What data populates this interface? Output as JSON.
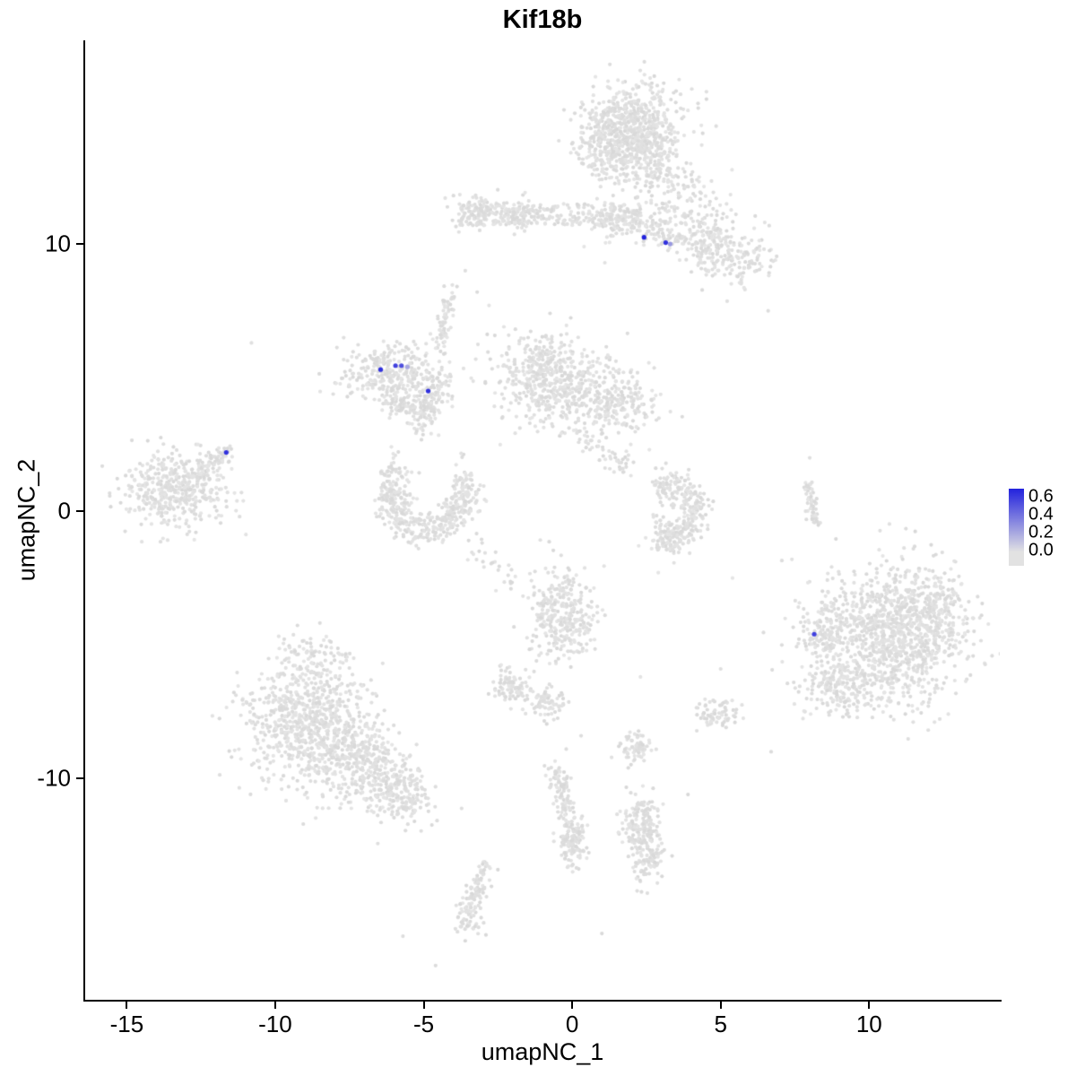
{
  "title": "Kif18b",
  "axes": {
    "x": {
      "label": "umapNC_1",
      "ticks": [
        -15,
        -10,
        -5,
        0,
        5,
        10
      ],
      "range": [
        -16.4,
        14.4
      ]
    },
    "y": {
      "label": "umapNC_2",
      "ticks": [
        10,
        0,
        -10
      ],
      "range": [
        -18.28,
        17.62
      ]
    }
  },
  "legend": {
    "tick_labels": [
      "0.6",
      "0.4",
      "0.2",
      "0.0"
    ],
    "vmax": 0.65,
    "vmin": 0.0,
    "color_high": "#2222DD",
    "color_low": "#E2E2E2"
  },
  "colors": {
    "background": "#FFFFFF",
    "axis": "#000000",
    "point_gray": "#DEDEDE"
  },
  "chart_data": {
    "type": "scatter",
    "title": "Kif18b",
    "xlabel": "umapNC_1",
    "ylabel": "umapNC_2",
    "xlim": [
      -16.4,
      14.4
    ],
    "ylim": [
      -18.28,
      17.62
    ],
    "grid": false,
    "legend_position": "right",
    "description": "UMAP feature plot; gray points are cells with zero Kif18b expression, blue points indicate expression level per legend gradient 0.0-0.6",
    "clusters": [
      {
        "type": "gauss",
        "x": 2.0,
        "y": 14.4,
        "sx": 0.85,
        "sy": 0.85,
        "n": 650
      },
      {
        "type": "gauss",
        "x": 1.3,
        "y": 13.5,
        "sx": 0.55,
        "sy": 0.6,
        "n": 180
      },
      {
        "type": "gauss",
        "x": 2.9,
        "y": 13.0,
        "sx": 0.5,
        "sy": 0.6,
        "n": 120
      },
      {
        "type": "gauss",
        "x": 3.5,
        "y": 11.6,
        "sx": 0.8,
        "sy": 0.7,
        "n": 120
      },
      {
        "type": "gauss",
        "x": 4.8,
        "y": 10.0,
        "sx": 0.65,
        "sy": 0.6,
        "n": 200
      },
      {
        "type": "gauss",
        "x": 5.8,
        "y": 9.3,
        "sx": 0.4,
        "sy": 0.4,
        "n": 70
      },
      {
        "type": "uniform",
        "x": -0.7,
        "y": 11.1,
        "w": 6.2,
        "h": 0.8,
        "n": 240
      },
      {
        "type": "gauss",
        "x": -3.2,
        "y": 11.15,
        "sx": 0.4,
        "sy": 0.3,
        "n": 90
      },
      {
        "type": "gauss",
        "x": -1.9,
        "y": 11.1,
        "sx": 0.45,
        "sy": 0.3,
        "n": 80
      },
      {
        "type": "gauss",
        "x": 1.3,
        "y": 10.9,
        "sx": 0.5,
        "sy": 0.35,
        "n": 90
      },
      {
        "type": "trail",
        "x1": 2.2,
        "y1": 10.6,
        "x2": 3.6,
        "y2": 10.2,
        "jitter": 0.25,
        "n": 60
      },
      {
        "type": "gauss",
        "x": -6.1,
        "y": 5.2,
        "sx": 0.85,
        "sy": 0.5,
        "n": 300
      },
      {
        "type": "arc",
        "x": -5.4,
        "y": 4.7,
        "r": 0.95,
        "a0": -160,
        "a1": 20,
        "jitter": 0.22,
        "n": 130
      },
      {
        "type": "gauss",
        "x": -4.95,
        "y": 3.7,
        "sx": 0.3,
        "sy": 0.45,
        "n": 70
      },
      {
        "type": "trail",
        "x1": -4.45,
        "y1": 6.1,
        "x2": -4.1,
        "y2": 8.4,
        "jitter": 0.13,
        "n": 70
      },
      {
        "type": "gauss",
        "x": -1.0,
        "y": 5.0,
        "sx": 0.8,
        "sy": 0.85,
        "n": 420
      },
      {
        "type": "gauss",
        "x": 0.7,
        "y": 4.3,
        "sx": 0.85,
        "sy": 0.7,
        "n": 260
      },
      {
        "type": "gauss",
        "x": 2.0,
        "y": 4.0,
        "sx": 0.5,
        "sy": 0.5,
        "n": 90
      },
      {
        "type": "trail",
        "x1": 0.3,
        "y1": 2.9,
        "x2": 1.9,
        "y2": 1.4,
        "jitter": 0.25,
        "n": 50
      },
      {
        "type": "arc",
        "x": -4.9,
        "y": 0.4,
        "r": 1.15,
        "a0": -200,
        "a1": 10,
        "jitter": 0.3,
        "n": 330
      },
      {
        "type": "gauss",
        "x": -6.0,
        "y": 1.0,
        "sx": 0.3,
        "sy": 0.45,
        "n": 80
      },
      {
        "type": "gauss",
        "x": -3.6,
        "y": 0.9,
        "sx": 0.3,
        "sy": 0.4,
        "n": 70
      },
      {
        "type": "gauss",
        "x": -13.4,
        "y": 0.8,
        "sx": 0.85,
        "sy": 0.7,
        "n": 430
      },
      {
        "type": "trail",
        "x1": -12.5,
        "y1": 1.4,
        "x2": -11.6,
        "y2": 2.3,
        "jitter": 0.15,
        "n": 70
      },
      {
        "type": "arc",
        "x": 3.1,
        "y": 0.0,
        "r": 1.05,
        "a0": -100,
        "a1": 110,
        "jitter": 0.27,
        "n": 260
      },
      {
        "type": "gauss",
        "x": 3.4,
        "y": -0.9,
        "sx": 0.5,
        "sy": 0.4,
        "n": 90
      },
      {
        "type": "trail",
        "x1": 7.9,
        "y1": 1.0,
        "x2": 8.2,
        "y2": -0.5,
        "jitter": 0.1,
        "n": 55
      },
      {
        "type": "gauss",
        "x": 10.7,
        "y": -4.7,
        "sx": 1.25,
        "sy": 1.3,
        "n": 1150
      },
      {
        "type": "gauss",
        "x": 9.0,
        "y": -6.6,
        "sx": 0.6,
        "sy": 0.5,
        "n": 150
      },
      {
        "type": "gauss",
        "x": 8.5,
        "y": -4.4,
        "sx": 0.4,
        "sy": 0.6,
        "n": 110
      },
      {
        "type": "gauss",
        "x": 12.4,
        "y": -3.4,
        "sx": 0.5,
        "sy": 0.6,
        "n": 120
      },
      {
        "type": "gauss",
        "x": -0.3,
        "y": -3.9,
        "sx": 0.55,
        "sy": 0.85,
        "n": 320
      },
      {
        "type": "gauss",
        "x": -8.8,
        "y": -8.0,
        "sx": 1.1,
        "sy": 1.15,
        "n": 820
      },
      {
        "type": "gauss",
        "x": -6.7,
        "y": -9.7,
        "sx": 0.75,
        "sy": 0.75,
        "n": 300
      },
      {
        "type": "gauss",
        "x": -5.6,
        "y": -10.8,
        "sx": 0.5,
        "sy": 0.5,
        "n": 130
      },
      {
        "type": "gauss",
        "x": -8.6,
        "y": -5.6,
        "sx": 0.6,
        "sy": 0.45,
        "n": 90
      },
      {
        "type": "trail",
        "x1": -3.4,
        "y1": -1.3,
        "x2": -1.6,
        "y2": -3.0,
        "jitter": 0.22,
        "n": 30
      },
      {
        "type": "gauss",
        "x": -2.0,
        "y": -6.5,
        "sx": 0.35,
        "sy": 0.3,
        "n": 90
      },
      {
        "type": "gauss",
        "x": -0.8,
        "y": -7.2,
        "sx": 0.3,
        "sy": 0.3,
        "n": 70
      },
      {
        "type": "gauss",
        "x": 2.1,
        "y": -8.9,
        "sx": 0.3,
        "sy": 0.25,
        "n": 70
      },
      {
        "type": "gauss",
        "x": 4.9,
        "y": -7.6,
        "sx": 0.35,
        "sy": 0.25,
        "n": 70
      },
      {
        "type": "trail",
        "x1": -0.6,
        "y1": -9.6,
        "x2": 0.1,
        "y2": -12.6,
        "jitter": 0.17,
        "n": 140
      },
      {
        "type": "gauss",
        "x": 0.0,
        "y": -12.4,
        "sx": 0.28,
        "sy": 0.45,
        "n": 90
      },
      {
        "type": "gauss",
        "x": 2.3,
        "y": -11.7,
        "sx": 0.3,
        "sy": 0.55,
        "n": 140
      },
      {
        "type": "gauss",
        "x": 2.55,
        "y": -13.0,
        "sx": 0.28,
        "sy": 0.5,
        "n": 110
      },
      {
        "type": "trail",
        "x1": -2.9,
        "y1": -13.2,
        "x2": -3.5,
        "y2": -15.0,
        "jitter": 0.15,
        "n": 80
      },
      {
        "type": "gauss",
        "x": -3.5,
        "y": -15.2,
        "sx": 0.25,
        "sy": 0.3,
        "n": 50
      }
    ],
    "sparse_points": [
      [
        -10.8,
        6.3
      ],
      [
        6.6,
        7.5
      ],
      [
        -3.6,
        9.0
      ],
      [
        -3.2,
        8.2
      ],
      [
        -2.8,
        7.7
      ],
      [
        0.4,
        9.9
      ],
      [
        1.1,
        9.3
      ],
      [
        5.2,
        11.5
      ],
      [
        4.2,
        12.4
      ],
      [
        8.0,
        2.0
      ],
      [
        7.4,
        -1.8
      ],
      [
        5.4,
        -2.5
      ],
      [
        2.9,
        -2.3
      ],
      [
        6.7,
        -9.0
      ],
      [
        1.0,
        -15.8
      ],
      [
        -5.7,
        -15.9
      ],
      [
        -4.6,
        -17.0
      ],
      [
        0.3,
        -8.4
      ],
      [
        -0.2,
        -8.9
      ],
      [
        3.9,
        -10.6
      ],
      [
        -12.6,
        2.5
      ],
      [
        -11.2,
        -0.2
      ],
      [
        -2.3,
        6.9
      ],
      [
        2.6,
        2.3
      ],
      [
        2.3,
        -6.2
      ],
      [
        5.0,
        -5.9
      ]
    ],
    "highlighted_points": [
      {
        "x": 2.42,
        "y": 10.25,
        "value": 0.65
      },
      {
        "x": 3.15,
        "y": 10.05,
        "value": 0.6
      },
      {
        "x": 3.3,
        "y": 10.0,
        "value": 0.25
      },
      {
        "x": -6.45,
        "y": 5.3,
        "value": 0.6
      },
      {
        "x": -5.95,
        "y": 5.45,
        "value": 0.55
      },
      {
        "x": -5.75,
        "y": 5.45,
        "value": 0.5
      },
      {
        "x": -5.55,
        "y": 5.4,
        "value": 0.2
      },
      {
        "x": -4.85,
        "y": 4.5,
        "value": 0.6
      },
      {
        "x": -11.65,
        "y": 2.2,
        "value": 0.6
      },
      {
        "x": 8.15,
        "y": -4.6,
        "value": 0.55
      }
    ]
  }
}
